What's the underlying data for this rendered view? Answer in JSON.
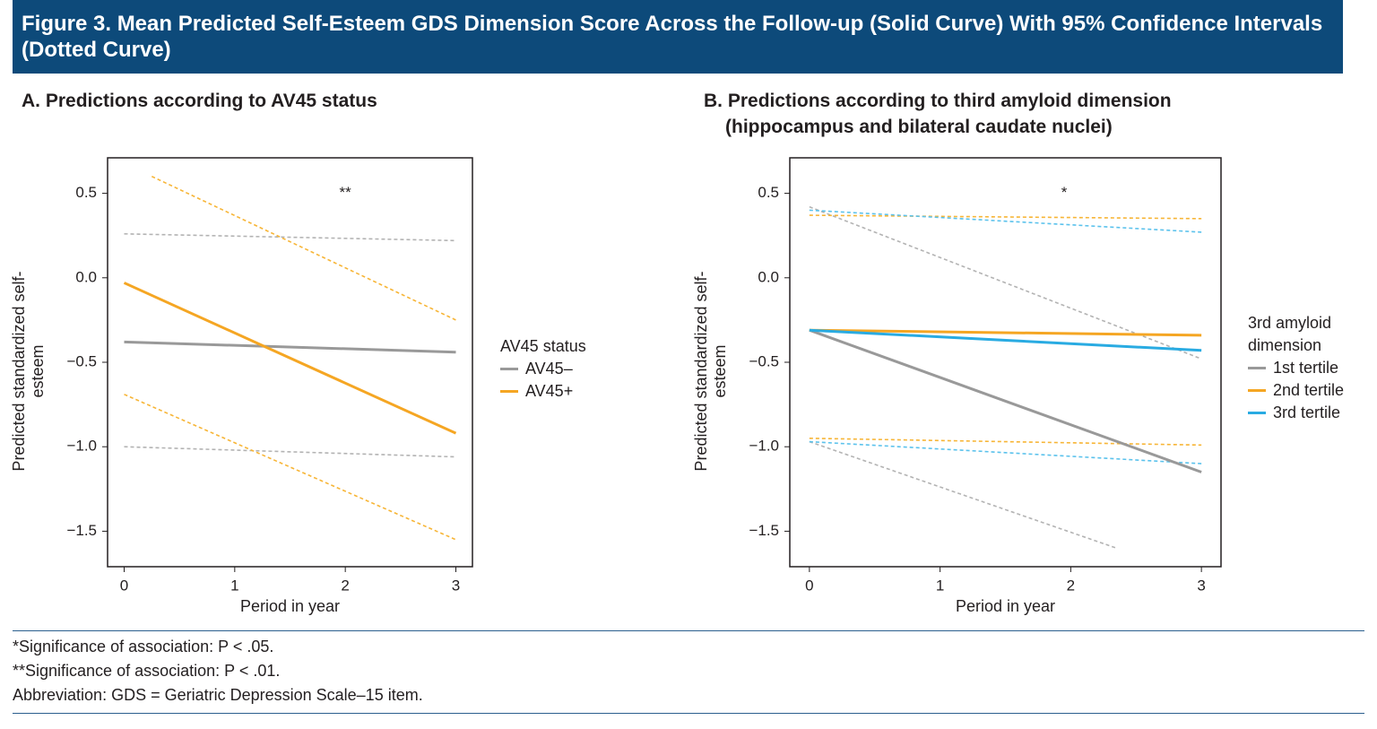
{
  "figure": {
    "title": "Figure 3. Mean Predicted Self-Esteem GDS Dimension Score Across the Follow-up (Solid Curve) With 95% Confidence Intervals (Dotted Curve)",
    "notes": [
      "*Significance of association: P < .05.",
      "**Significance of association: P < .01.",
      "Abbreviation: GDS = Geriatric Depression Scale–15 item."
    ]
  },
  "chart_data": [
    {
      "type": "line",
      "title": "A. Predictions according to AV45 status",
      "x_label": "Period in year",
      "y_label": "Predicted standardized self-esteem",
      "legend_title": "AV45 status",
      "legend": "right",
      "grid": false,
      "xlim": [
        -0.15,
        3.15
      ],
      "xticks": [
        0,
        1,
        2,
        3
      ],
      "ylim": [
        -1.71,
        0.71
      ],
      "yticks": [
        {
          "value": 0.5,
          "label": "0.5"
        },
        {
          "value": 0,
          "label": "0.0"
        },
        {
          "value": -0.5,
          "label": "−0.5"
        },
        {
          "value": -1,
          "label": "−1.0"
        },
        {
          "value": -1.5,
          "label": "−1.5"
        }
      ],
      "annotations": [
        {
          "text": "**",
          "x": 2,
          "y": 0.5
        }
      ],
      "series": [
        {
          "color": "#b3b3b3",
          "dashed": true,
          "x": [
            0,
            3
          ],
          "values": [
            0.26,
            0.22
          ]
        },
        {
          "color": "#b3b3b3",
          "dashed": true,
          "x": [
            0,
            3
          ],
          "values": [
            -1.0,
            -1.06
          ]
        },
        {
          "color": "#f7b536",
          "dashed": true,
          "x": [
            0.25,
            3
          ],
          "values": [
            0.6,
            -0.25
          ]
        },
        {
          "color": "#f7b536",
          "dashed": true,
          "x": [
            0,
            3
          ],
          "values": [
            -0.69,
            -1.55
          ]
        },
        {
          "name": "AV45–",
          "color": "#999999",
          "x": [
            0,
            3
          ],
          "values": [
            -0.38,
            -0.44
          ]
        },
        {
          "name": "AV45+",
          "color": "#f5a623",
          "x": [
            0,
            3
          ],
          "values": [
            -0.03,
            -0.92
          ]
        }
      ]
    },
    {
      "type": "line",
      "title": "B. Predictions according to third amyloid dimension (hippocampus and bilateral caudate nuclei)",
      "x_label": "Period in year",
      "y_label": "Predicted standardized self-esteem",
      "legend_title": "3rd amyloid dimension",
      "legend": "right",
      "grid": false,
      "xlim": [
        -0.15,
        3.15
      ],
      "xticks": [
        0,
        1,
        2,
        3
      ],
      "ylim": [
        -1.71,
        0.71
      ],
      "yticks": [
        {
          "value": 0.5,
          "label": "0.5"
        },
        {
          "value": 0,
          "label": "0.0"
        },
        {
          "value": -0.5,
          "label": "−0.5"
        },
        {
          "value": -1,
          "label": "−1.0"
        },
        {
          "value": -1.5,
          "label": "−1.5"
        }
      ],
      "annotations": [
        {
          "text": "*",
          "x": 1.95,
          "y": 0.5
        }
      ],
      "series": [
        {
          "color": "#b3b3b3",
          "dashed": true,
          "x": [
            0,
            3
          ],
          "values": [
            0.42,
            -0.48
          ]
        },
        {
          "color": "#b3b3b3",
          "dashed": true,
          "x": [
            0,
            2.35
          ],
          "values": [
            -0.97,
            -1.6
          ]
        },
        {
          "color": "#f7b536",
          "dashed": true,
          "x": [
            0,
            3
          ],
          "values": [
            0.37,
            0.35
          ]
        },
        {
          "color": "#f7b536",
          "dashed": true,
          "x": [
            0,
            3
          ],
          "values": [
            -0.95,
            -0.99
          ]
        },
        {
          "color": "#5bc2ec",
          "dashed": true,
          "x": [
            0,
            3
          ],
          "values": [
            0.4,
            0.27
          ]
        },
        {
          "color": "#5bc2ec",
          "dashed": true,
          "x": [
            0,
            3
          ],
          "values": [
            -0.97,
            -1.1
          ]
        },
        {
          "name": "1st tertile",
          "color": "#999999",
          "x": [
            0,
            3
          ],
          "values": [
            -0.31,
            -1.15
          ]
        },
        {
          "name": "2nd tertile",
          "color": "#f5a623",
          "x": [
            0,
            3
          ],
          "values": [
            -0.31,
            -0.34
          ]
        },
        {
          "name": "3rd tertile",
          "color": "#29abe2",
          "x": [
            0,
            3
          ],
          "values": [
            -0.31,
            -0.43
          ]
        }
      ]
    }
  ]
}
